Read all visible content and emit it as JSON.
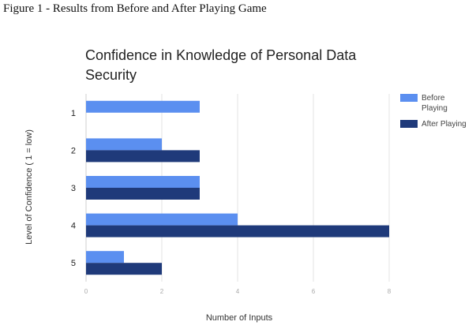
{
  "figure_caption": "Figure 1 - Results from Before and After Playing Game",
  "chart_data": {
    "type": "bar",
    "orientation": "horizontal",
    "title_lines": [
      "Confidence in Knowledge of Personal Data",
      "Security"
    ],
    "xlabel": "Number of Inputs",
    "ylabel": "Level of Confidence ( 1 = low)",
    "categories": [
      "1",
      "2",
      "3",
      "4",
      "5"
    ],
    "series": [
      {
        "name": "Before Playing",
        "legend_lines": [
          "Before",
          "Playing"
        ],
        "color": "#5b8ff0",
        "values": [
          3,
          2,
          3,
          4,
          1
        ]
      },
      {
        "name": "After Playing",
        "legend_lines": [
          "After Playing"
        ],
        "color": "#1f3a7a",
        "values": [
          0,
          3,
          3,
          8,
          2
        ]
      }
    ],
    "xlim": [
      0,
      8
    ],
    "xticks": [
      0,
      2,
      4,
      6,
      8
    ],
    "grid": true,
    "legend_position": "right"
  }
}
